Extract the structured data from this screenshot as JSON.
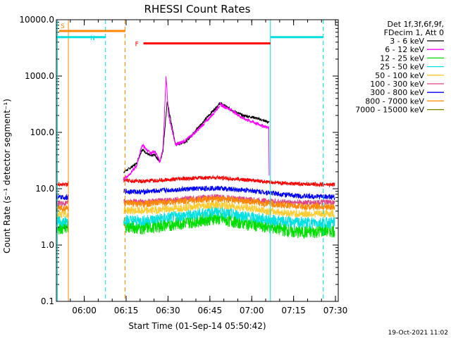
{
  "chart_data": {
    "type": "line",
    "title": "RHESSI Count Rates",
    "xlabel": "Start Time (01-Sep-14 05:50:42)",
    "ylabel": "Count Rate (s⁻¹ detector segment⁻¹)",
    "yscale": "log",
    "ylim": [
      0.1,
      10000
    ],
    "xlim_minutes": [
      -0.7,
      100.3
    ],
    "x_ticks": [
      {
        "t": 9.3,
        "label": "06:00"
      },
      {
        "t": 24.3,
        "label": "06:15"
      },
      {
        "t": 39.3,
        "label": "06:30"
      },
      {
        "t": 54.3,
        "label": "06:45"
      },
      {
        "t": 69.3,
        "label": "07:00"
      },
      {
        "t": 84.3,
        "label": "07:15"
      },
      {
        "t": 99.3,
        "label": "07:30"
      }
    ],
    "y_ticks": [
      {
        "v": 0.1,
        "label": "0.1"
      },
      {
        "v": 1,
        "label": "1.0"
      },
      {
        "v": 10,
        "label": "10.0"
      },
      {
        "v": 100,
        "label": "100.0"
      },
      {
        "v": 1000,
        "label": "1000.0"
      },
      {
        "v": 10000,
        "label": "10000.0"
      }
    ],
    "legend_header": [
      "Det 1f,3f,6f,9f,",
      "FDecim 1, Att 0"
    ],
    "series": [
      {
        "name": "3 - 6 keV",
        "color": "#000000",
        "t": [
          -0.7,
          3.5,
          23.4,
          25,
          28,
          30,
          33,
          34.5,
          36.4,
          37.5,
          39,
          42,
          46,
          50,
          55,
          58,
          62,
          66,
          70,
          75.6
        ],
        "values": [
          2.0,
          2.1,
          20,
          22,
          28,
          50,
          38,
          40,
          30,
          48,
          350,
          60,
          70,
          120,
          230,
          330,
          250,
          200,
          185,
          150
        ]
      },
      {
        "name": "6 - 12 keV",
        "color": "#ff00ff",
        "t": [
          23.4,
          25,
          28,
          30,
          33,
          34.5,
          36.4,
          37.5,
          38.6,
          39.5,
          42,
          46,
          50,
          55,
          58,
          62,
          66,
          70,
          75.4,
          75.6
        ],
        "values": [
          15,
          17,
          25,
          60,
          42,
          47,
          30,
          50,
          1000,
          200,
          60,
          75,
          110,
          200,
          310,
          250,
          180,
          150,
          120,
          10
        ]
      },
      {
        "name": "12 - 25 keV",
        "color": "#00dd00",
        "t": [
          -0.7,
          3.5,
          23.4,
          30,
          40,
          50,
          56,
          62,
          70,
          75.6,
          85,
          90,
          95,
          99
        ],
        "values": [
          2.0,
          2.1,
          2.2,
          2.0,
          2.3,
          2.7,
          3.0,
          2.7,
          2.3,
          2.1,
          1.7,
          1.7,
          1.8,
          1.8
        ]
      },
      {
        "name": "25 - 50 keV",
        "color": "#00e0e0",
        "t": [
          -0.7,
          3.5,
          23.4,
          30,
          40,
          50,
          56,
          62,
          70,
          75.6,
          85,
          90,
          95,
          99
        ],
        "values": [
          2.6,
          2.6,
          2.8,
          2.7,
          3.1,
          3.6,
          4.0,
          3.6,
          3.1,
          2.8,
          2.5,
          2.5,
          2.5,
          2.5
        ]
      },
      {
        "name": "50 - 100 keV",
        "color": "#ffcc33",
        "t": [
          -0.7,
          3.5,
          23.4,
          30,
          40,
          50,
          56,
          62,
          70,
          75.6,
          85,
          90,
          95,
          99
        ],
        "values": [
          3.5,
          3.5,
          4.2,
          4.0,
          4.4,
          4.9,
          5.2,
          4.9,
          4.4,
          4.0,
          3.6,
          3.6,
          3.6,
          3.6
        ]
      },
      {
        "name": "100 - 300 keV",
        "color": "#dd4488",
        "t": [
          -0.7,
          3.5,
          23.4,
          30,
          40,
          50,
          56,
          62,
          70,
          75.6,
          85,
          90,
          95,
          99
        ],
        "values": [
          5.5,
          5.5,
          6.0,
          5.8,
          6.3,
          6.8,
          7.2,
          6.8,
          6.3,
          6.0,
          5.7,
          5.7,
          5.7,
          5.7
        ]
      },
      {
        "name": "300 - 800 keV",
        "color": "#0000ff",
        "t": [
          -0.7,
          3.5,
          23.4,
          30,
          40,
          50,
          56,
          62,
          70,
          75.6,
          85,
          90,
          95,
          99
        ],
        "values": [
          7.0,
          7.0,
          9.0,
          8.8,
          9.5,
          10.0,
          10.3,
          9.8,
          9.2,
          8.5,
          7.5,
          7.3,
          7.3,
          7.0
        ]
      },
      {
        "name": "800 - 7000 keV",
        "color": "#ff8800",
        "t": [
          -0.7,
          3.5,
          23.4,
          30,
          40,
          50,
          56,
          62,
          70,
          75.6,
          85,
          90,
          95,
          99
        ],
        "values": [
          4.5,
          4.5,
          5.5,
          5.3,
          5.8,
          6.3,
          6.6,
          6.3,
          5.8,
          5.4,
          4.9,
          4.8,
          4.8,
          4.8
        ]
      },
      {
        "name": "7000 - 15000 keV",
        "color": "#ff0000",
        "t": [
          -0.7,
          3.5,
          23.4,
          30,
          40,
          50,
          56,
          62,
          70,
          75.6,
          85,
          90,
          95,
          99
        ],
        "values": [
          12,
          12,
          14,
          13.5,
          14.5,
          15.5,
          15.8,
          15.0,
          14.0,
          13.0,
          12.2,
          12.0,
          11.8,
          11.8
        ]
      }
    ],
    "legend_render_colors": [
      "#000000",
      "#ff00ff",
      "#00dd00",
      "#00e0e0",
      "#ffcc33",
      "#dd4488",
      "#0000ff",
      "#ff8800",
      "#808000"
    ],
    "flag_bars": [
      {
        "label": "S",
        "color": "#ff8800",
        "t_start": 0.3,
        "t_end": 24.0,
        "y": 6300
      },
      {
        "label": "N",
        "color": "#00e0e0",
        "t_start": -0.7,
        "t_end": 17.0,
        "y": 4900
      },
      {
        "label": "F",
        "color": "#ff0000",
        "t_start": 30.5,
        "t_end": 76.0,
        "y": 3800
      },
      {
        "label": "",
        "color": "#00e0e0",
        "t_start": 76.0,
        "t_end": 95.0,
        "y": 4900
      }
    ],
    "vertical_lines": [
      {
        "t": -0.3,
        "color": "#00e0e0",
        "style": "solid"
      },
      {
        "t": 3.6,
        "color": "#ff8800",
        "style": "solid"
      },
      {
        "t": 16.9,
        "color": "#00e0e0",
        "style": "dashed"
      },
      {
        "t": 23.9,
        "color": "#ff8800",
        "style": "dashed"
      },
      {
        "t": 76.0,
        "color": "#00e0e0",
        "style": "solid"
      },
      {
        "t": 94.9,
        "color": "#00e0e0",
        "style": "dashed"
      }
    ],
    "footer_date": "19-Oct-2021 11:02"
  }
}
